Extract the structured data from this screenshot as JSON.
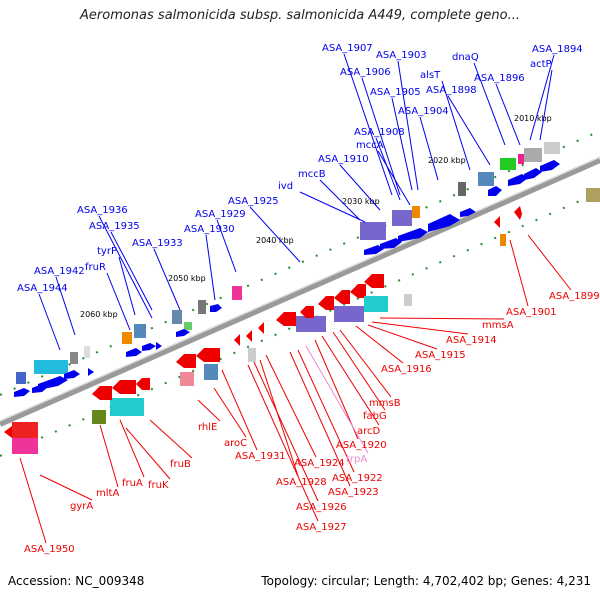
{
  "header": {
    "title": "Aeromonas salmonicida subsp. salmonicida A449, complete geno..."
  },
  "footer": {
    "accession": "Accession: NC_009348",
    "summary": "Topology: circular; Length: 4,702,402 bp; Genes: 4,231"
  },
  "scale": {
    "tick_labels": [
      "2010 kbp",
      "2020 kbp",
      "2030 kbp",
      "2040 kbp",
      "2050 kbp",
      "2060 kbp"
    ]
  },
  "colors": {
    "forward_strand": "#0000ee",
    "reverse_strand": "#ee0000",
    "highlight_label": "#ee88cc",
    "backbone": "#888888",
    "ticks": "#228822"
  },
  "forward_labels": [
    "ASA_1907",
    "ASA_1903",
    "dnaQ",
    "ASA_1894",
    "ASA_1906",
    "alsT",
    "ASA_1896",
    "actP",
    "ASA_1905",
    "ASA_1898",
    "ASA_1904",
    "ASA_1908",
    "mccA",
    "ASA_1910",
    "mccB",
    "ivd",
    "ASA_1925",
    "ASA_1929",
    "ASA_1930",
    "ASA_1936",
    "ASA_1935",
    "ASA_1933",
    "tyrP",
    "fruR",
    "ASA_1942",
    "ASA_1944"
  ],
  "reverse_labels": [
    "ASA_1899",
    "ASA_1901",
    "mmsA",
    "ASA_1914",
    "ASA_1915",
    "ASA_1916",
    "mmsB",
    "fabG",
    "arcD",
    "ASA_1920",
    "trpA",
    "ASA_1922",
    "ASA_1923",
    "ASA_1924",
    "ASA_1928",
    "ASA_1926",
    "ASA_1927",
    "ASA_1931",
    "aroC",
    "rhlE",
    "fruB",
    "fruK",
    "fruA",
    "mltA",
    "gyrA",
    "ASA_1950"
  ]
}
